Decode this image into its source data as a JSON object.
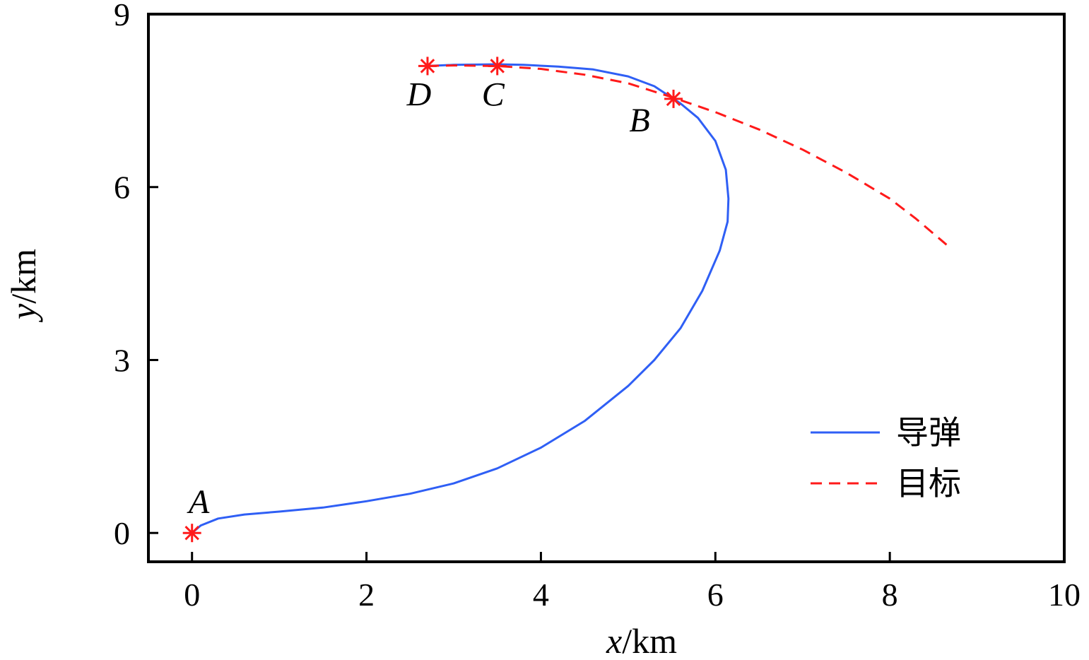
{
  "chart_data": {
    "type": "line",
    "title": "",
    "xlabel": {
      "var": "x",
      "unit": "/km"
    },
    "ylabel": {
      "var": "y",
      "unit": "/km"
    },
    "xlim": [
      -0.5,
      10
    ],
    "ylim": [
      -0.5,
      9
    ],
    "xticks": [
      0,
      2,
      4,
      6,
      8,
      10
    ],
    "yticks": [
      0,
      3,
      6,
      9
    ],
    "grid": false,
    "legend_position": "bottom-right",
    "series": [
      {
        "name": "导弹",
        "style": "solid",
        "color": "#2f5ff5",
        "x": [
          0,
          0.1,
          0.3,
          0.6,
          1.0,
          1.5,
          2.0,
          2.5,
          3.0,
          3.5,
          4.0,
          4.5,
          5.0,
          5.3,
          5.6,
          5.85,
          6.05,
          6.14,
          6.15,
          6.12,
          6.0,
          5.8,
          5.6,
          5.52,
          5.3,
          5.0,
          4.6,
          4.2,
          3.8,
          3.5,
          3.0,
          2.7
        ],
        "y": [
          0,
          0.13,
          0.25,
          0.32,
          0.37,
          0.44,
          0.55,
          0.68,
          0.86,
          1.12,
          1.48,
          1.94,
          2.55,
          3.0,
          3.55,
          4.2,
          4.9,
          5.4,
          5.8,
          6.3,
          6.8,
          7.2,
          7.45,
          7.53,
          7.75,
          7.92,
          8.04,
          8.09,
          8.12,
          8.13,
          8.12,
          8.1
        ]
      },
      {
        "name": "目标",
        "style": "dashed",
        "color": "#ff1a1a",
        "x": [
          2.7,
          3.0,
          3.5,
          4.0,
          4.5,
          5.0,
          5.52,
          6.0,
          6.5,
          7.0,
          7.5,
          8.0,
          8.3,
          8.65
        ],
        "y": [
          8.1,
          8.11,
          8.1,
          8.05,
          7.95,
          7.8,
          7.55,
          7.3,
          7.0,
          6.65,
          6.25,
          5.8,
          5.45,
          5.0
        ]
      }
    ],
    "markers": [
      {
        "label": "A",
        "x": 0,
        "y": 0,
        "color": "#ff1a1a"
      },
      {
        "label": "B",
        "x": 5.52,
        "y": 7.53,
        "color": "#ff1a1a"
      },
      {
        "label": "C",
        "x": 3.5,
        "y": 8.1,
        "color": "#ff1a1a"
      },
      {
        "label": "D",
        "x": 2.7,
        "y": 8.1,
        "color": "#ff1a1a"
      }
    ]
  }
}
